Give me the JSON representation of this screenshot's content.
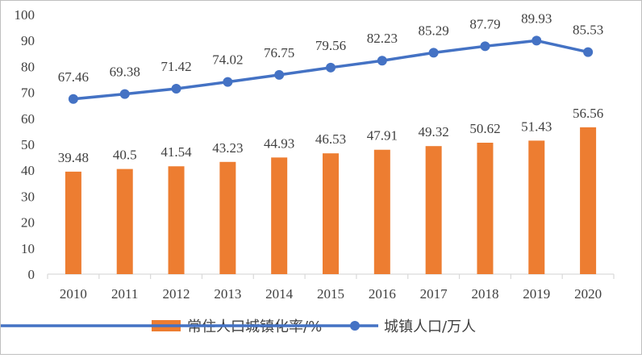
{
  "chart_data": {
    "type": "bar",
    "categories": [
      "2010",
      "2011",
      "2012",
      "2013",
      "2014",
      "2015",
      "2016",
      "2017",
      "2018",
      "2019",
      "2020"
    ],
    "series": [
      {
        "name": "常住人口城镇化率/%",
        "type": "bar",
        "color": "#ed7d31",
        "values": [
          39.48,
          40.5,
          41.54,
          43.23,
          44.93,
          46.53,
          47.91,
          49.32,
          50.62,
          51.43,
          56.56
        ],
        "labels": [
          "39.48",
          "40.5",
          "41.54",
          "43.23",
          "44.93",
          "46.53",
          "47.91",
          "49.32",
          "50.62",
          "51.43",
          "56.56"
        ]
      },
      {
        "name": "城镇人口/万人",
        "type": "line",
        "color": "#4472c4",
        "values": [
          67.46,
          69.38,
          71.42,
          74.02,
          76.75,
          79.56,
          82.23,
          85.29,
          87.79,
          89.93,
          85.53
        ],
        "labels": [
          "67.46",
          "69.38",
          "71.42",
          "74.02",
          "76.75",
          "79.56",
          "82.23",
          "85.29",
          "87.79",
          "89.93",
          "85.53"
        ]
      }
    ],
    "ylim": [
      0,
      100
    ],
    "yticks": [
      "0",
      "10",
      "20",
      "30",
      "40",
      "50",
      "60",
      "70",
      "80",
      "90",
      "100"
    ],
    "grid": false,
    "legend": "bottom"
  }
}
